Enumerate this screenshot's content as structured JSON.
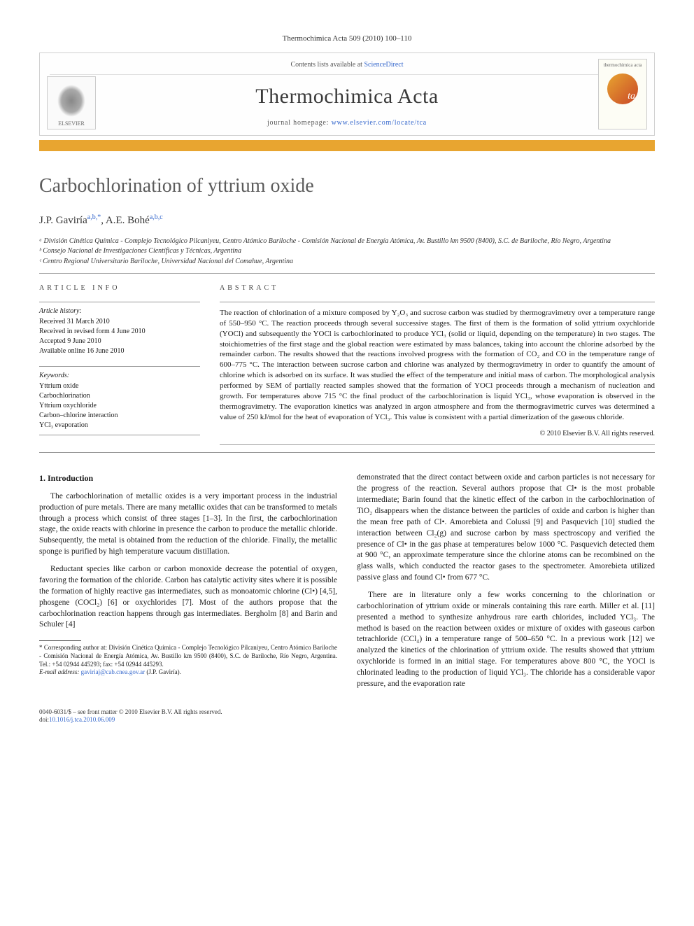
{
  "citation": "Thermochimica Acta 509 (2010) 100–110",
  "masthead": {
    "contents_line_pre": "Contents lists available at ",
    "contents_link": "ScienceDirect",
    "journal": "Thermochimica Acta",
    "homepage_pre": "journal homepage: ",
    "homepage_link": "www.elsevier.com/locate/tca",
    "left_logo_label": "ELSEVIER",
    "right_logo_label": "thermochimica acta"
  },
  "title": "Carbochlorination of yttrium oxide",
  "authors_html": "J.P. Gaviría",
  "authors_sup1": "a,b,",
  "authors_star": "*",
  "authors_sep": ", ",
  "authors_2": "A.E. Bohé",
  "authors_sup2": "a,b,c",
  "affiliations": {
    "a": "ᵃ División Cinética Química - Complejo Tecnológico Pilcaniyeu, Centro Atómico Bariloche - Comisión Nacional de Energía Atómica, Av. Bustillo km 9500 (8400), S.C. de Bariloche, Río Negro, Argentina",
    "b": "ᵇ Consejo Nacional de Investigaciones Científicas y Técnicas, Argentina",
    "c": "ᶜ Centro Regional Universitario Bariloche, Universidad Nacional del Comahue, Argentina"
  },
  "info": {
    "label": "ARTICLE INFO",
    "history_head": "Article history:",
    "received": "Received 31 March 2010",
    "revised": "Received in revised form 4 June 2010",
    "accepted": "Accepted 9 June 2010",
    "online": "Available online 16 June 2010",
    "keywords_head": "Keywords:",
    "kw1": "Yttrium oxide",
    "kw2": "Carbochlorination",
    "kw3": "Yttrium oxychloride",
    "kw4": "Carbon–chlorine interaction",
    "kw5": "YCl₃ evaporation"
  },
  "abstract": {
    "label": "ABSTRACT",
    "text": "The reaction of chlorination of a mixture composed by Y₂O₃ and sucrose carbon was studied by thermogravimetry over a temperature range of 550–950 °C. The reaction proceeds through several successive stages. The first of them is the formation of solid yttrium oxychloride (YOCl) and subsequently the YOCl is carbochlorinated to produce YCl₃ (solid or liquid, depending on the temperature) in two stages. The stoichiometries of the first stage and the global reaction were estimated by mass balances, taking into account the chlorine adsorbed by the remainder carbon. The results showed that the reactions involved progress with the formation of CO₂ and CO in the temperature range of 600–775 °C. The interaction between sucrose carbon and chlorine was analyzed by thermogravimetry in order to quantify the amount of chlorine which is adsorbed on its surface. It was studied the effect of the temperature and initial mass of carbon. The morphological analysis performed by SEM of partially reacted samples showed that the formation of YOCl proceeds through a mechanism of nucleation and growth. For temperatures above 715 °C the final product of the carbochlorination is liquid YCl₃, whose evaporation is observed in the thermogravimetry. The evaporation kinetics was analyzed in argon atmosphere and from the thermogravimetric curves was determined a value of 250 kJ/mol for the heat of evaporation of YCl₃. This value is consistent with a partial dimerization of the gaseous chloride.",
    "copyright": "© 2010 Elsevier B.V. All rights reserved."
  },
  "body": {
    "heading1": "1. Introduction",
    "p1": "The carbochlorination of metallic oxides is a very important process in the industrial production of pure metals. There are many metallic oxides that can be transformed to metals through a process which consist of three stages [1–3]. In the first, the carbochlorination stage, the oxide reacts with chlorine in presence the carbon to produce the metallic chloride. Subsequently, the metal is obtained from the reduction of the chloride. Finally, the metallic sponge is purified by high temperature vacuum distillation.",
    "p2": "Reductant species like carbon or carbon monoxide decrease the potential of oxygen, favoring the formation of the chloride. Carbon has catalytic activity sites where it is possible the formation of highly reactive gas intermediates, such as monoatomic chlorine (Cl•) [4,5], phosgene (COCl₂) [6] or oxychlorides [7]. Most of the authors propose that the carbochlorination reaction happens through gas intermediates. Bergholm [8] and Barin and Schuler [4]",
    "p3": "demonstrated that the direct contact between oxide and carbon particles is not necessary for the progress of the reaction. Several authors propose that Cl• is the most probable intermediate; Barin found that the kinetic effect of the carbon in the carbochlorination of TiO₂ disappears when the distance between the particles of oxide and carbon is higher than the mean free path of Cl•. Amorebieta and Colussi [9] and Pasquevich [10] studied the interaction between Cl₂(g) and sucrose carbon by mass spectroscopy and verified the presence of Cl• in the gas phase at temperatures below 1000 °C. Pasquevich detected them at 900 °C, an approximate temperature since the chlorine atoms can be recombined on the glass walls, which conducted the reactor gases to the spectrometer. Amorebieta utilized passive glass and found Cl• from 677 °C.",
    "p4": "There are in literature only a few works concerning to the chlorination or carbochlorination of yttrium oxide or minerals containing this rare earth. Miller et al. [11] presented a method to synthesize anhydrous rare earth chlorides, included YCl₃. The method is based on the reaction between oxides or mixture of oxides with gaseous carbon tetrachloride (CCl₄) in a temperature range of 500–650 °C. In a previous work [12] we analyzed the kinetics of the chlorination of yttrium oxide. The results showed that yttrium oxychloride is formed in an initial stage. For temperatures above 800 °C, the YOCl is chlorinated leading to the production of liquid YCl₃. The chloride has a considerable vapor pressure, and the evaporation rate"
  },
  "footnotes": {
    "corr": "* Corresponding author at: División Cinética Química - Complejo Tecnológico Pilcaniyeu, Centro Atómico Bariloche - Comisión Nacional de Energía Atómica, Av. Bustillo km 9500 (8400), S.C. de Bariloche, Río Negro, Argentina. Tel.: +54 02944 445293; fax: +54 02944 445293.",
    "email_pre": "E-mail address: ",
    "email": "gaviriaj@cab.cnea.gov.ar",
    "email_post": " (J.P. Gaviría)."
  },
  "footer": {
    "line1": "0040-6031/$ – see front matter © 2010 Elsevier B.V. All rights reserved.",
    "doi_pre": "doi:",
    "doi": "10.1016/j.tca.2010.06.009"
  },
  "colors": {
    "accent_orange": "#e8a530",
    "link_blue": "#3366cc",
    "title_grey": "#5c5c5c",
    "border_grey": "#d0d0d0"
  }
}
